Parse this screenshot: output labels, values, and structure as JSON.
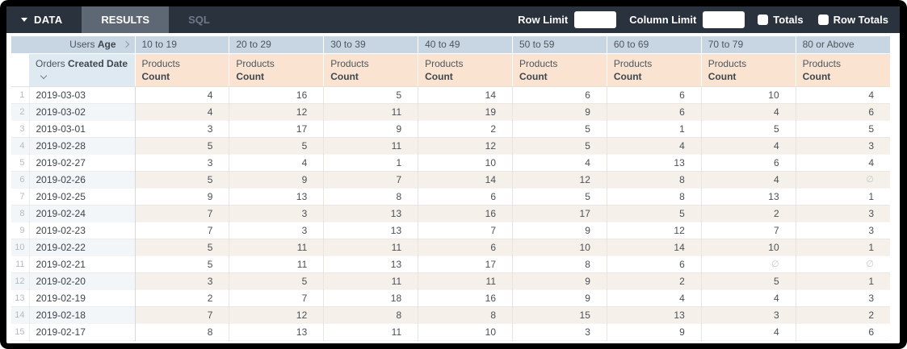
{
  "toolbar": {
    "tabs": {
      "data": "DATA",
      "results": "RESULTS",
      "sql": "SQL"
    },
    "row_limit_label": "Row Limit",
    "row_limit_value": "",
    "column_limit_label": "Column Limit",
    "column_limit_value": "",
    "totals_label": "Totals",
    "totals_checked": false,
    "row_totals_label": "Row Totals",
    "row_totals_checked": false
  },
  "pivot": {
    "pivot_field": {
      "view": "Users",
      "field": "Age"
    },
    "row_field": {
      "view": "Orders",
      "field": "Created Date"
    },
    "measure": {
      "view": "Products",
      "field": "Count"
    },
    "sort": {
      "column": "Created Date",
      "direction": "desc"
    },
    "age_buckets": [
      "10 to 19",
      "20 to 29",
      "30 to 39",
      "40 to 49",
      "50 to 59",
      "60 to 69",
      "70 to 79",
      "80 or Above"
    ],
    "null_symbol": "∅",
    "rows": [
      {
        "num": 1,
        "date": "2019-03-03",
        "values": [
          4,
          16,
          5,
          14,
          6,
          6,
          10,
          4
        ]
      },
      {
        "num": 2,
        "date": "2019-03-02",
        "values": [
          4,
          12,
          11,
          19,
          9,
          6,
          4,
          6
        ]
      },
      {
        "num": 3,
        "date": "2019-03-01",
        "values": [
          3,
          17,
          9,
          2,
          5,
          1,
          5,
          5
        ]
      },
      {
        "num": 4,
        "date": "2019-02-28",
        "values": [
          5,
          5,
          11,
          12,
          5,
          4,
          4,
          3
        ]
      },
      {
        "num": 5,
        "date": "2019-02-27",
        "values": [
          3,
          4,
          1,
          10,
          4,
          13,
          6,
          4
        ]
      },
      {
        "num": 6,
        "date": "2019-02-26",
        "values": [
          5,
          9,
          7,
          14,
          12,
          8,
          4,
          null
        ]
      },
      {
        "num": 7,
        "date": "2019-02-25",
        "values": [
          9,
          13,
          8,
          6,
          5,
          8,
          13,
          1
        ]
      },
      {
        "num": 8,
        "date": "2019-02-24",
        "values": [
          7,
          3,
          13,
          16,
          17,
          5,
          2,
          3
        ]
      },
      {
        "num": 9,
        "date": "2019-02-23",
        "values": [
          7,
          3,
          13,
          7,
          9,
          12,
          7,
          3
        ]
      },
      {
        "num": 10,
        "date": "2019-02-22",
        "values": [
          5,
          11,
          11,
          6,
          10,
          14,
          10,
          1
        ]
      },
      {
        "num": 11,
        "date": "2019-02-21",
        "values": [
          5,
          11,
          13,
          17,
          8,
          6,
          null,
          null
        ]
      },
      {
        "num": 12,
        "date": "2019-02-20",
        "values": [
          3,
          5,
          11,
          11,
          9,
          2,
          5,
          1
        ]
      },
      {
        "num": 13,
        "date": "2019-02-19",
        "values": [
          2,
          7,
          18,
          16,
          9,
          4,
          4,
          3
        ]
      },
      {
        "num": 14,
        "date": "2019-02-18",
        "values": [
          7,
          12,
          8,
          8,
          15,
          13,
          3,
          2
        ]
      },
      {
        "num": 15,
        "date": "2019-02-17",
        "values": [
          8,
          13,
          11,
          10,
          3,
          9,
          4,
          6
        ]
      }
    ]
  },
  "colors": {
    "topbar_bg": "#29323d",
    "results_tab_bg": "#5e6874",
    "sql_tab_text": "#6e7987",
    "pivot_header_bg": "#c8d5e2",
    "row_header_bg": "#dfe9f1",
    "measure_header_bg": "#fae3d0",
    "even_row_side_bg": "#f3f6f8",
    "even_row_measure_bg": "#f6f0ea"
  }
}
